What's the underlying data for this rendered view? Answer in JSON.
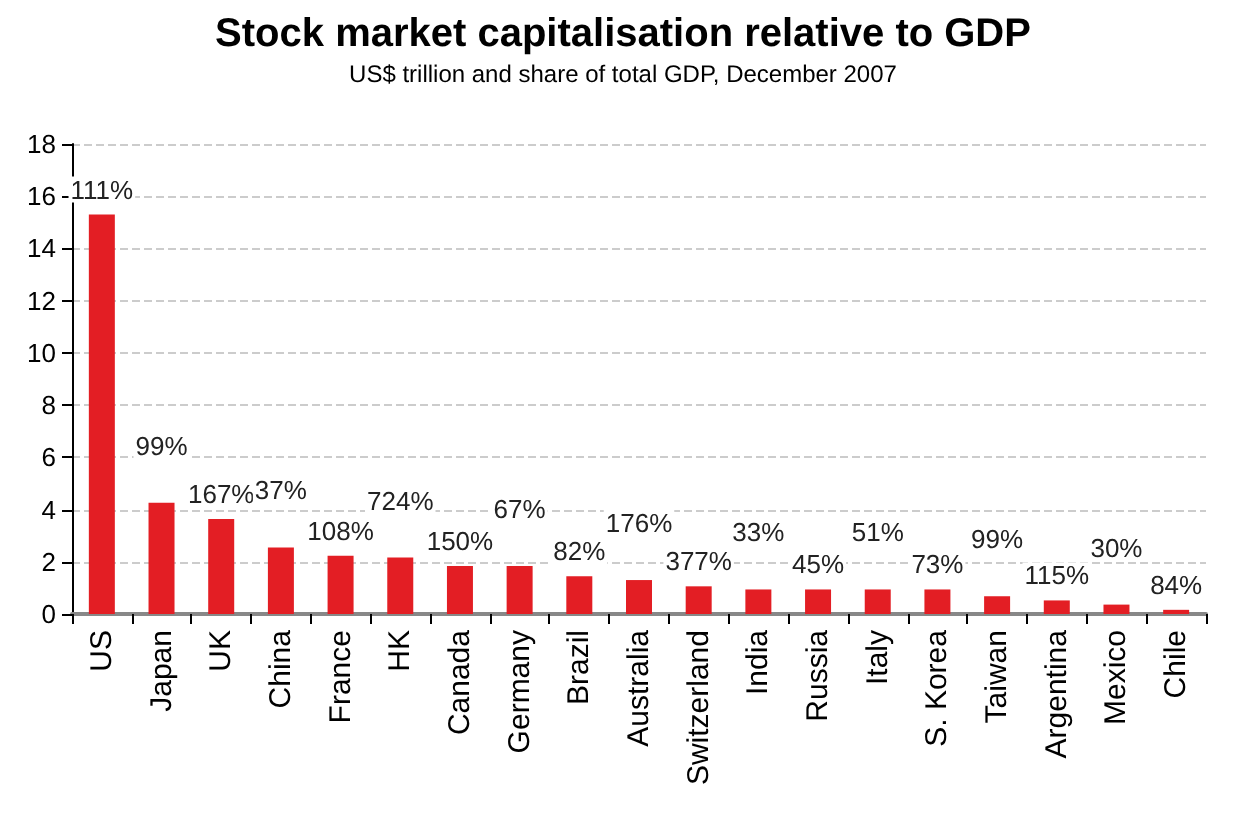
{
  "chart_data": {
    "type": "bar",
    "title": "Stock market capitalisation relative to GDP",
    "subtitle": "US$ trillion and share of total GDP, December 2007",
    "categories": [
      "US",
      "Japan",
      "UK",
      "China",
      "France",
      "HK",
      "Canada",
      "Germany",
      "Brazil",
      "Australia",
      "Switzerland",
      "India",
      "Russia",
      "Italy",
      "S. Korea",
      "Taiwan",
      "Argentina",
      "Mexico",
      "Chile"
    ],
    "values": [
      15.3,
      4.26,
      3.64,
      2.55,
      2.23,
      2.16,
      1.84,
      1.84,
      1.45,
      1.3,
      1.06,
      0.94,
      0.94,
      0.94,
      0.94,
      0.68,
      0.52,
      0.36,
      0.16
    ],
    "annotations": [
      {
        "text": "111%",
        "x": "US",
        "y": 15.3
      },
      {
        "text": "99%",
        "x": "Japan",
        "y": 4.26
      },
      {
        "text": "167%",
        "x": "UK",
        "y": 3.64
      },
      {
        "text": "37%",
        "x": "China",
        "y": 2.55
      },
      {
        "text": "108%",
        "x": "France",
        "y": 2.23
      },
      {
        "text": "724%",
        "x": "HK",
        "y": 2.16
      },
      {
        "text": "150%",
        "x": "Canada",
        "y": 1.84
      },
      {
        "text": "67%",
        "x": "Germany",
        "y": 1.84
      },
      {
        "text": "82%",
        "x": "Brazil",
        "y": 1.45
      },
      {
        "text": "176%",
        "x": "Australia",
        "y": 1.3
      },
      {
        "text": "377%",
        "x": "Switzerland",
        "y": 1.06
      },
      {
        "text": "33%",
        "x": "India",
        "y": 0.94
      },
      {
        "text": "45%",
        "x": "Russia",
        "y": 0.94
      },
      {
        "text": "51%",
        "x": "Italy",
        "y": 0.94
      },
      {
        "text": "73%",
        "x": "S. Korea",
        "y": 0.94
      },
      {
        "text": "99%",
        "x": "Taiwan",
        "y": 0.68
      },
      {
        "text": "115%",
        "x": "Argentina",
        "y": 0.52
      },
      {
        "text": "30%",
        "x": "Mexico",
        "y": 0.36
      },
      {
        "text": "84%",
        "x": "Chile",
        "y": 0.16
      }
    ],
    "color": "#e31e24",
    "ylim": [
      0,
      18
    ],
    "yticks": [
      0,
      2,
      4,
      6,
      8,
      10,
      12,
      14,
      16,
      18
    ],
    "grid": "y"
  }
}
